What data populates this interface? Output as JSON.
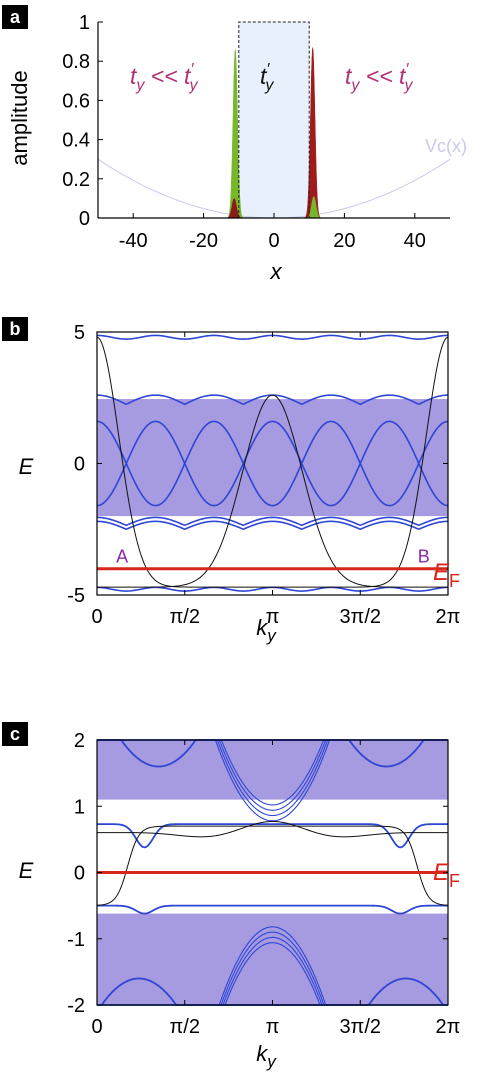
{
  "chart_data": [
    {
      "panel": "a",
      "type": "area",
      "xlabel": "x",
      "ylabel": "amplitude",
      "xlim": [
        -50,
        50
      ],
      "ylim": [
        0,
        1
      ],
      "x_ticks": [
        "-40",
        "-20",
        "0",
        "20",
        "40"
      ],
      "x_tick_values": [
        -40,
        -20,
        0,
        20,
        40
      ],
      "y_ticks": [
        "0",
        "0.2",
        "0.4",
        "0.6",
        "0.8",
        "1"
      ],
      "y_tick_values": [
        0,
        0.2,
        0.4,
        0.6,
        0.8,
        1
      ],
      "annotations": {
        "left": {
          "main": "t",
          "sub": "y",
          "op": " << ",
          "main2": "t",
          "prime": "′",
          "sub2": "y"
        },
        "center": {
          "main": "t",
          "prime": "′",
          "sub": "y"
        },
        "right": {
          "main": "t",
          "sub": "y",
          "op": " << ",
          "main2": "t",
          "prime": "′",
          "sub2": "y"
        },
        "potential": "Vc(x)"
      },
      "central_region": {
        "x": [
          -10,
          10
        ],
        "height": 1
      },
      "peaks": [
        {
          "name": "green",
          "center": -11,
          "height": 0.86,
          "color": "#76b82a"
        },
        {
          "name": "dark-red",
          "center": -11.3,
          "height": 0.1,
          "color": "#8b1a1a"
        },
        {
          "name": "dark-red",
          "center": 11,
          "height": 0.87,
          "color": "#a01c1c"
        },
        {
          "name": "green",
          "center": 11.3,
          "height": 0.11,
          "color": "#76b82a"
        }
      ],
      "potential_curve": {
        "form": "quadratic",
        "value_at_edge": 0.3
      }
    },
    {
      "panel": "b",
      "type": "line",
      "xlabel": "k",
      "xlabel_sub": "y",
      "ylabel": "E",
      "xlim": [
        0,
        6.2832
      ],
      "ylim": [
        -5,
        5
      ],
      "x_ticks": [
        "0",
        "π/2",
        "π",
        "3π/2",
        "2π"
      ],
      "y_ticks": [
        "5",
        "0",
        "-5"
      ],
      "y_tick_values": [
        5,
        0,
        -5
      ],
      "continuum_band": [
        -2.0,
        2.45
      ],
      "fermi_level": -4.0,
      "fermi_label": "E",
      "fermi_label_sub": "F",
      "point_labels": [
        {
          "text": "A",
          "k": 0.45,
          "E": -4.0
        },
        {
          "text": "B",
          "k": 5.85,
          "E": -4.0
        }
      ],
      "colors": {
        "bands": "#2e46d6",
        "band_fill": "#a69ae0",
        "edge": "#111111",
        "fermi": "#d7261b",
        "labels": "#8c2aa8"
      }
    },
    {
      "panel": "c",
      "type": "line",
      "xlabel": "k",
      "xlabel_sub": "y",
      "ylabel": "E",
      "xlim": [
        0,
        6.2832
      ],
      "ylim": [
        -2,
        2
      ],
      "x_ticks": [
        "0",
        "π/2",
        "π",
        "3π/2",
        "2π"
      ],
      "y_ticks": [
        "2",
        "1",
        "0",
        "-1",
        "-2"
      ],
      "y_tick_values": [
        2,
        1,
        0,
        -1,
        -2
      ],
      "upper_continuum": [
        1.1,
        2.0
      ],
      "lower_continuum": [
        -2.0,
        -0.62
      ],
      "fermi_level": 0.0,
      "fermi_label": "E",
      "fermi_label_sub": "F",
      "colors": {
        "bands": "#2e46d6",
        "band_fill": "#a69ae0",
        "edge": "#111111",
        "fermi": "#d7261b"
      }
    }
  ],
  "panel_labels": [
    "a",
    "b",
    "c"
  ]
}
